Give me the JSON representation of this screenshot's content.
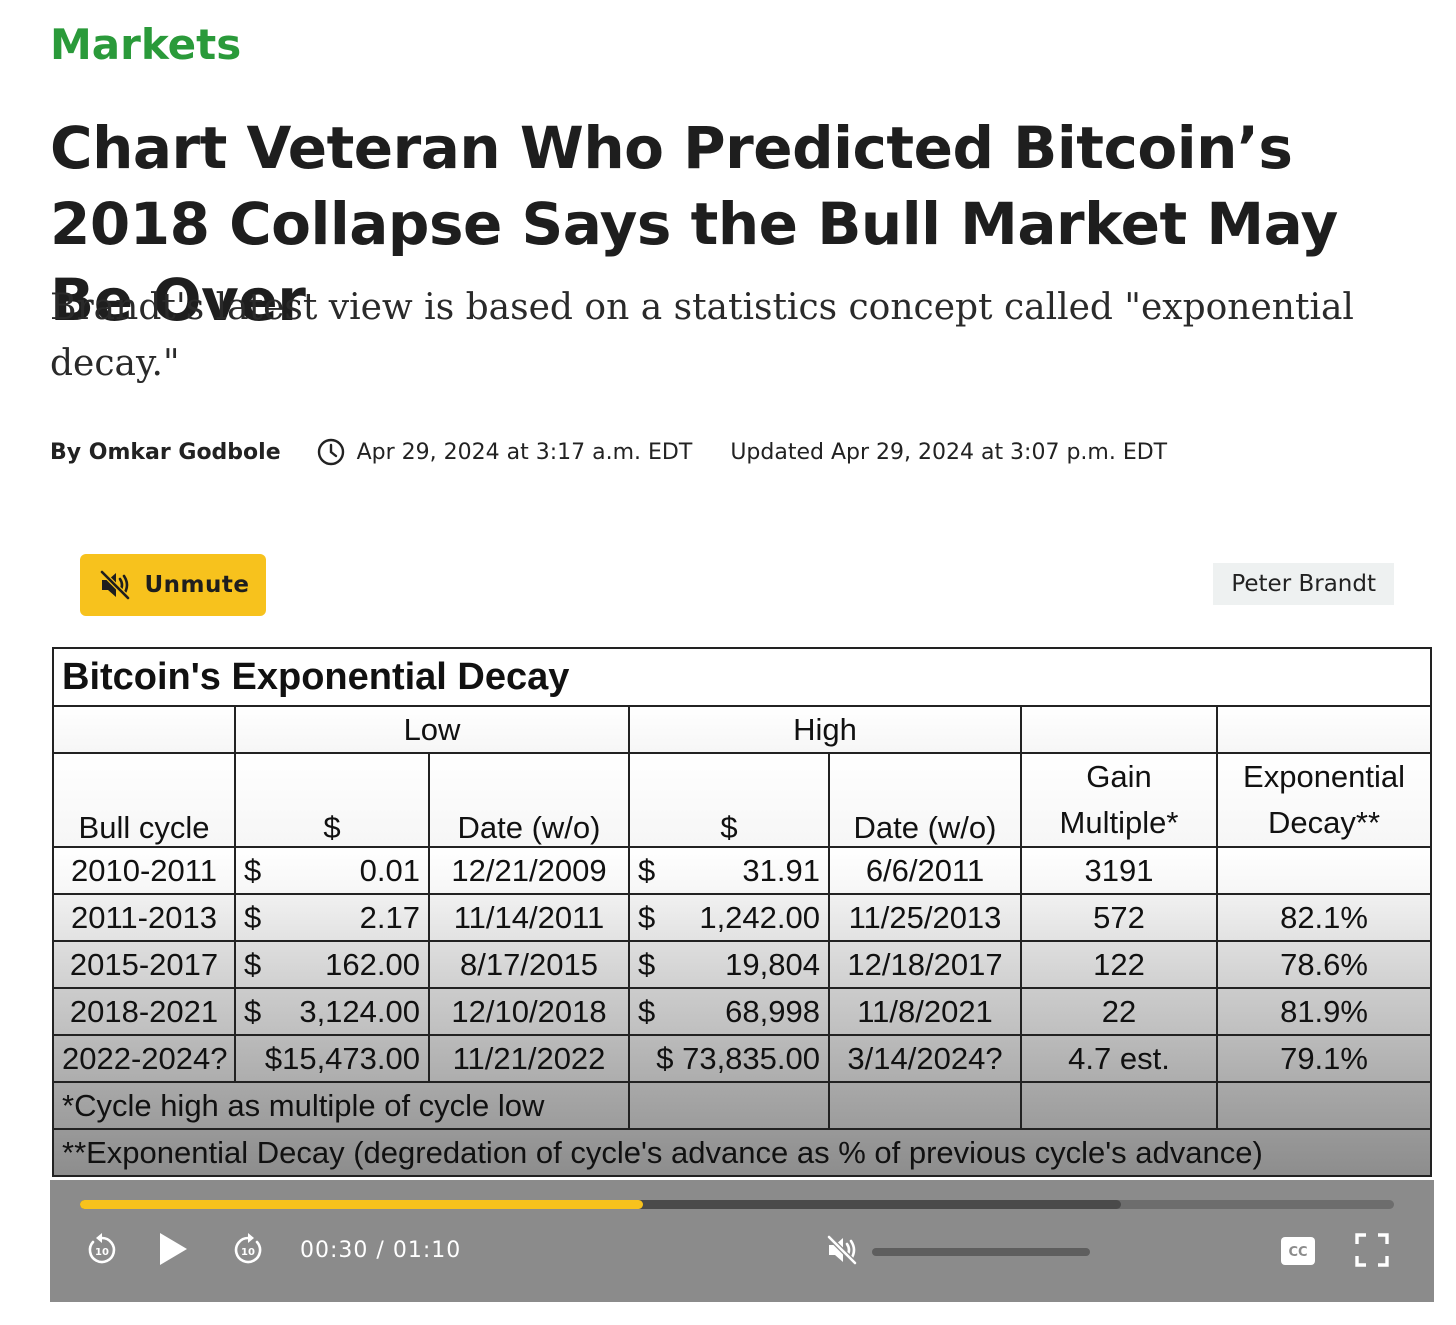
{
  "section": "Markets",
  "headline": "Chart Veteran Who Predicted Bitcoin’s 2018 Collapse Says the Bull Market May Be Over",
  "dek": "Brandt's latest view is based on a statistics concept called \"exponential decay.\"",
  "byline": {
    "author": "By Omkar Godbole",
    "published": "Apr 29, 2024 at 3:17 a.m. EDT",
    "updated": "Updated Apr 29, 2024 at 3:07 p.m. EDT"
  },
  "video": {
    "unmute_label": "Unmute",
    "credit": "Peter Brandt",
    "current_time": "00:30",
    "separator": "/",
    "duration": "01:10",
    "progress_fraction": 0.4286,
    "buffered_fraction": 0.792,
    "volume_fraction": 0,
    "accent_color": "#f7c21d"
  },
  "table": {
    "title": "Bitcoin's Exponential Decay",
    "group_low": "Low",
    "group_high": "High",
    "headers": {
      "bull_cycle": "Bull cycle",
      "low_usd": "$",
      "low_date": "Date (w/o)",
      "high_usd": "$",
      "high_date": "Date (w/o)",
      "gain_1": "Gain",
      "gain_2": "Multiple*",
      "decay_1": "Exponential",
      "decay_2": "Decay**"
    },
    "rows": [
      {
        "cycle": "2010-2011",
        "low_sym": "$",
        "low": "0.01",
        "low_date": "12/21/2009",
        "high_sym": "$",
        "high": "31.91",
        "high_date": "6/6/2011",
        "gain": "3191",
        "decay": ""
      },
      {
        "cycle": "2011-2013",
        "low_sym": "$",
        "low": "2.17",
        "low_date": "11/14/2011",
        "high_sym": "$",
        "high": "1,242.00",
        "high_date": "11/25/2013",
        "gain": "572",
        "decay": "82.1%"
      },
      {
        "cycle": "2015-2017",
        "low_sym": "$",
        "low": "162.00",
        "low_date": "8/17/2015",
        "high_sym": "$",
        "high": "19,804",
        "high_date": "12/18/2017",
        "gain": "122",
        "decay": "78.6%"
      },
      {
        "cycle": "2018-2021",
        "low_sym": "$",
        "low": "3,124.00",
        "low_date": "12/10/2018",
        "high_sym": "$",
        "high": "68,998",
        "high_date": "11/8/2021",
        "gain": "22",
        "decay": "81.9%"
      },
      {
        "cycle": "2022-2024?",
        "low_sym": "",
        "low": "$15,473.00",
        "low_date": "11/21/2022",
        "high_sym": "",
        "high": "$ 73,835.00",
        "high_date": "3/14/2024?",
        "gain": "4.7 est.",
        "decay": "79.1%"
      }
    ],
    "footnote_1": "*Cycle high as multiple of cycle low",
    "footnote_2": "**Exponential Decay (degredation of cycle's advance as % of previous cycle's advance)"
  }
}
